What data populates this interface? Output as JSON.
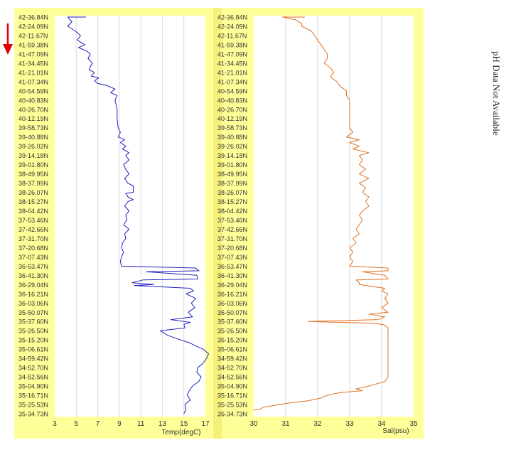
{
  "note": "pH Data Not Available",
  "chart_data": [
    {
      "type": "line",
      "xlabel": "Temp(degC)",
      "xlim": [
        3,
        17
      ],
      "xticks": [
        3,
        5,
        7,
        9,
        11,
        13,
        15,
        17
      ],
      "yticks": [
        "42-36.84N",
        "42-24.09N",
        "42-11.67N",
        "41-59.38N",
        "41-47.09N",
        "41-34.45N",
        "41-21.01N",
        "41-07.34N",
        "40-54.59N",
        "40-40.83N",
        "40-26.70N",
        "40-12.19N",
        "39-58.73N",
        "39-40.88N",
        "39-26.02N",
        "39-14.18N",
        "39-01.80N",
        "38-49.95N",
        "38-37.99N",
        "38-26.07N",
        "38-15.27N",
        "38-04.42N",
        "37-53.46N",
        "37-42.66N",
        "37-31.70N",
        "37-20.68N",
        "37-07.43N",
        "36-53.47N",
        "36-41.30N",
        "36-29.04N",
        "36-16.21N",
        "36-03.06N",
        "35-50.07N",
        "35-37.60N",
        "35-26.50N",
        "35-15.20N",
        "35-06.61N",
        "34-59.42N",
        "34-52.70N",
        "34-52.56N",
        "35-04.90N",
        "35-16.71N",
        "35-25.53N",
        "35-34.73N"
      ],
      "color": "#1f1fbf",
      "series": [
        {
          "values": [
            [
              5.9,
              0
            ],
            [
              4.2,
              0
            ],
            [
              4.6,
              0.5
            ],
            [
              4.2,
              1
            ],
            [
              4.9,
              1.5
            ],
            [
              5.4,
              2
            ],
            [
              5.1,
              2.5
            ],
            [
              5.8,
              3
            ],
            [
              5.2,
              3.3
            ],
            [
              6.0,
              3.7
            ],
            [
              6.3,
              4
            ],
            [
              6.1,
              4.5
            ],
            [
              6.5,
              5
            ],
            [
              6.3,
              5.4
            ],
            [
              6.2,
              5.7
            ],
            [
              6.7,
              6
            ],
            [
              6.4,
              6.4
            ],
            [
              7.1,
              6.6
            ],
            [
              6.7,
              6.9
            ],
            [
              7.0,
              7.2
            ],
            [
              7.8,
              7.4
            ],
            [
              8.6,
              7.8
            ],
            [
              8.2,
              8.2
            ],
            [
              8.8,
              8.5
            ],
            [
              8.6,
              9
            ],
            [
              8.7,
              9.5
            ],
            [
              8.8,
              10
            ],
            [
              8.8,
              11
            ],
            [
              8.9,
              12
            ],
            [
              9.1,
              12.5
            ],
            [
              8.9,
              13
            ],
            [
              9.5,
              13.3
            ],
            [
              9.1,
              13.6
            ],
            [
              9.6,
              14
            ],
            [
              9.3,
              14.3
            ],
            [
              9.9,
              14.7
            ],
            [
              9.6,
              15
            ],
            [
              9.9,
              15.5
            ],
            [
              9.4,
              16
            ],
            [
              9.6,
              16.5
            ],
            [
              9.9,
              17
            ],
            [
              9.5,
              17.5
            ],
            [
              9.8,
              18
            ],
            [
              10.3,
              18.3
            ],
            [
              10.3,
              19
            ],
            [
              9.6,
              19.1
            ],
            [
              9.8,
              19.5
            ],
            [
              10.3,
              19.8
            ],
            [
              9.8,
              20
            ],
            [
              9.5,
              20.5
            ],
            [
              9.9,
              21
            ],
            [
              9.6,
              21.5
            ],
            [
              9.7,
              22
            ],
            [
              9.4,
              22.5
            ],
            [
              9.9,
              23
            ],
            [
              9.5,
              23.5
            ],
            [
              9.6,
              24
            ],
            [
              9.3,
              24.5
            ],
            [
              9.2,
              25
            ],
            [
              9.4,
              25.5
            ],
            [
              9.2,
              26
            ],
            [
              9.1,
              26.5
            ],
            [
              9.2,
              27
            ],
            [
              16.1,
              27.2
            ],
            [
              16.4,
              27.5
            ],
            [
              11.5,
              27.6
            ],
            [
              16.2,
              28
            ],
            [
              16.3,
              28.4
            ],
            [
              11.2,
              28.5
            ],
            [
              10.2,
              28.8
            ],
            [
              12.2,
              29
            ],
            [
              10.4,
              29.1
            ],
            [
              15.6,
              29.4
            ],
            [
              15.9,
              29.7
            ],
            [
              15.2,
              30
            ],
            [
              16.1,
              30.5
            ],
            [
              15.7,
              31
            ],
            [
              16.0,
              31.5
            ],
            [
              15.4,
              32
            ],
            [
              15.8,
              32.5
            ],
            [
              13.8,
              32.8
            ],
            [
              15.6,
              33.1
            ],
            [
              15.0,
              33.3
            ],
            [
              15.1,
              33.7
            ],
            [
              12.8,
              34
            ],
            [
              13.5,
              34.5
            ],
            [
              14.7,
              35
            ],
            [
              15.5,
              35.3
            ],
            [
              16.2,
              35.7
            ],
            [
              16.8,
              36
            ],
            [
              17.3,
              36.5
            ],
            [
              17.1,
              37
            ],
            [
              16.8,
              37.5
            ],
            [
              16.3,
              38
            ],
            [
              16.2,
              38.5
            ],
            [
              16.6,
              39
            ],
            [
              16.4,
              39.5
            ],
            [
              15.8,
              40
            ],
            [
              15.5,
              40.5
            ],
            [
              15.3,
              41
            ],
            [
              15.6,
              41.5
            ],
            [
              15.1,
              42
            ],
            [
              15.2,
              42.5
            ],
            [
              15.0,
              43
            ]
          ]
        }
      ]
    },
    {
      "type": "line",
      "xlabel": "Sal(psu)",
      "xlim": [
        30,
        35
      ],
      "xticks": [
        30,
        31,
        32,
        33,
        34,
        35
      ],
      "yticks": [
        "42-36.84N",
        "42-24.09N",
        "42-11.67N",
        "41-59.38N",
        "41-47.09N",
        "41-34.45N",
        "41-21.01N",
        "41-07.34N",
        "40-54.59N",
        "40-40.83N",
        "40-26.70N",
        "40-12.19N",
        "39-58.73N",
        "39-40.88N",
        "39-26.02N",
        "39-14.18N",
        "39-01.80N",
        "38-49.95N",
        "38-37.99N",
        "38-26.07N",
        "38-15.27N",
        "38-04.42N",
        "37-53.46N",
        "37-42.66N",
        "37-31.70N",
        "37-20.68N",
        "37-07.43N",
        "36-53.47N",
        "36-41.30N",
        "36-29.04N",
        "36-16.21N",
        "36-03.06N",
        "35-50.07N",
        "35-37.60N",
        "35-26.50N",
        "35-15.20N",
        "35-06.61N",
        "34-59.42N",
        "34-52.70N",
        "34-52.56N",
        "35-04.90N",
        "35-16.71N",
        "35-25.53N",
        "35-34.73N"
      ],
      "color": "#e0701f",
      "series": [
        {
          "values": [
            [
              31.6,
              0
            ],
            [
              30.9,
              0
            ],
            [
              31.3,
              0.3
            ],
            [
              31.5,
              0.7
            ],
            [
              31.5,
              1
            ],
            [
              31.8,
              1.5
            ],
            [
              31.9,
              2
            ],
            [
              32.0,
              2.5
            ],
            [
              32.1,
              3
            ],
            [
              32.2,
              3.5
            ],
            [
              32.3,
              4
            ],
            [
              32.3,
              4.5
            ],
            [
              32.2,
              5
            ],
            [
              32.4,
              5.5
            ],
            [
              32.5,
              6
            ],
            [
              32.4,
              6.5
            ],
            [
              32.6,
              7
            ],
            [
              32.7,
              7.5
            ],
            [
              32.9,
              8
            ],
            [
              32.9,
              8.5
            ],
            [
              33.0,
              9
            ],
            [
              33.0,
              10
            ],
            [
              33.0,
              11
            ],
            [
              33.0,
              12
            ],
            [
              33.1,
              12.5
            ],
            [
              32.9,
              13
            ],
            [
              33.3,
              13.3
            ],
            [
              33.0,
              13.6
            ],
            [
              33.3,
              14
            ],
            [
              33.1,
              14.3
            ],
            [
              33.6,
              14.7
            ],
            [
              33.3,
              15
            ],
            [
              33.4,
              15.5
            ],
            [
              33.3,
              16
            ],
            [
              33.5,
              16.5
            ],
            [
              33.3,
              17
            ],
            [
              33.6,
              17.5
            ],
            [
              33.3,
              18
            ],
            [
              33.5,
              18.5
            ],
            [
              33.4,
              19
            ],
            [
              33.6,
              19.5
            ],
            [
              33.5,
              20
            ],
            [
              33.6,
              20.5
            ],
            [
              33.4,
              21
            ],
            [
              33.3,
              21.5
            ],
            [
              33.4,
              22
            ],
            [
              33.3,
              22.5
            ],
            [
              33.2,
              23
            ],
            [
              33.3,
              23.5
            ],
            [
              33.1,
              24
            ],
            [
              33.2,
              24.5
            ],
            [
              33.0,
              25
            ],
            [
              33.1,
              25.5
            ],
            [
              33.0,
              26
            ],
            [
              33.1,
              26.5
            ],
            [
              33.0,
              27
            ],
            [
              34.2,
              27.2
            ],
            [
              34.2,
              27.5
            ],
            [
              33.4,
              27.6
            ],
            [
              34.1,
              28
            ],
            [
              34.2,
              28.4
            ],
            [
              33.2,
              28.5
            ],
            [
              33.3,
              28.8
            ],
            [
              33.3,
              29
            ],
            [
              34.1,
              29.4
            ],
            [
              34.0,
              29.7
            ],
            [
              34.2,
              30
            ],
            [
              34.1,
              30.5
            ],
            [
              34.2,
              31
            ],
            [
              34.0,
              31.5
            ],
            [
              34.2,
              32
            ],
            [
              33.6,
              32.2
            ],
            [
              34.1,
              32.5
            ],
            [
              33.9,
              32.8
            ],
            [
              31.7,
              33
            ],
            [
              33.8,
              33.2
            ],
            [
              34.1,
              33.4
            ],
            [
              34.2,
              33.7
            ],
            [
              34.2,
              34
            ],
            [
              34.2,
              34.5
            ],
            [
              34.2,
              35
            ],
            [
              34.2,
              35.5
            ],
            [
              34.2,
              36
            ],
            [
              34.2,
              37
            ],
            [
              34.2,
              38
            ],
            [
              34.2,
              39
            ],
            [
              34.1,
              39.5
            ],
            [
              33.6,
              40
            ],
            [
              33.2,
              40.3
            ],
            [
              33.4,
              40.5
            ],
            [
              32.7,
              40.7
            ],
            [
              32.3,
              41
            ],
            [
              32.1,
              41.3
            ],
            [
              31.7,
              41.6
            ],
            [
              31.2,
              41.8
            ],
            [
              30.8,
              42
            ],
            [
              30.3,
              42.3
            ],
            [
              30.2,
              42.5
            ],
            [
              30.0,
              42.6
            ]
          ]
        }
      ]
    }
  ]
}
